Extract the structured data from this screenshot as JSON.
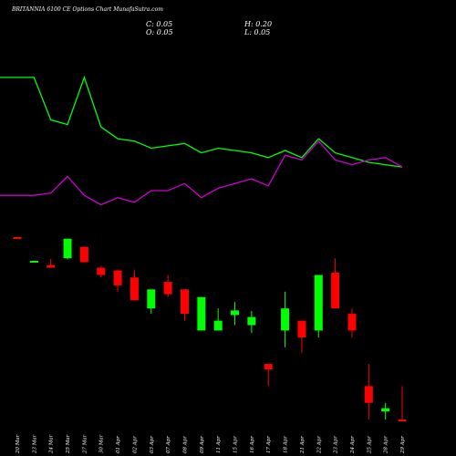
{
  "header": {
    "title": "BRITANNIA 6100  CE Options  Chart MunafaSutra.com",
    "close": "C: 0.05",
    "open": "O: 0.05",
    "high": "H: 0.20",
    "low": "L: 0.05"
  },
  "colors": {
    "background": "#000000",
    "line_green": "#00ff00",
    "line_magenta": "#cc00cc",
    "up": "#00ff00",
    "down": "#ff0000",
    "text": "#ffffff"
  },
  "chart_data": {
    "type": "candlestick",
    "categories": [
      "20 Mar",
      "23 Mar",
      "24 Mar",
      "25 Mar",
      "27 Mar",
      "30 Mar",
      "01 Apr",
      "02 Apr",
      "03 Apr",
      "07 Apr",
      "08 Apr",
      "09 Apr",
      "11 Apr",
      "15 Apr",
      "16 Apr",
      "17 Apr",
      "18 Apr",
      "21 Apr",
      "22 Apr",
      "23 Apr",
      "24 Apr",
      "25 Apr",
      "28 Apr",
      "29 Apr"
    ],
    "candles": [
      {
        "open": 96,
        "close": 91,
        "high": 96,
        "low": 91,
        "dir": "down"
      },
      {
        "open": 35,
        "close": 36,
        "high": 36,
        "low": 34,
        "dir": "up"
      },
      {
        "open": 30,
        "close": 27,
        "high": 39,
        "low": 27,
        "dir": "down"
      },
      {
        "open": 40,
        "close": 90,
        "high": 90,
        "low": 38,
        "dir": "up"
      },
      {
        "open": 64,
        "close": 34,
        "high": 64,
        "low": 34,
        "dir": "down"
      },
      {
        "open": 27,
        "close": 20,
        "high": 29,
        "low": 18,
        "dir": "down"
      },
      {
        "open": 24,
        "close": 13,
        "high": 25,
        "low": 10,
        "dir": "down"
      },
      {
        "open": 18,
        "close": 7,
        "high": 24,
        "low": 7,
        "dir": "down"
      },
      {
        "open": 5,
        "close": 11,
        "high": 11,
        "low": 4,
        "dir": "up"
      },
      {
        "open": 15,
        "close": 9,
        "high": 20,
        "low": 8,
        "dir": "down"
      },
      {
        "open": 11,
        "close": 4,
        "high": 11,
        "low": 3,
        "dir": "down"
      },
      {
        "open": 2,
        "close": 8,
        "high": 8,
        "low": 2,
        "dir": "up"
      },
      {
        "open": 2,
        "close": 3,
        "high": 5,
        "low": 2,
        "dir": "up"
      },
      {
        "open": 3.8,
        "close": 4.6,
        "high": 6.5,
        "low": 2.5,
        "dir": "up"
      },
      {
        "open": 2.5,
        "close": 3.5,
        "high": 4.5,
        "low": 1.8,
        "dir": "up"
      },
      {
        "open": 0.5,
        "close": 0.4,
        "high": 0.5,
        "low": 0.2,
        "dir": "down"
      },
      {
        "open": 2,
        "close": 5,
        "high": 10,
        "low": 1,
        "dir": "up"
      },
      {
        "open": 3,
        "close": 1.5,
        "high": 3,
        "low": 0.8,
        "dir": "down"
      },
      {
        "open": 2,
        "close": 20,
        "high": 20,
        "low": 1.5,
        "dir": "up"
      },
      {
        "open": 22,
        "close": 5,
        "high": 40,
        "low": 5,
        "dir": "down"
      },
      {
        "open": 4,
        "close": 2,
        "high": 5,
        "low": 1.5,
        "dir": "down"
      },
      {
        "open": 0.2,
        "close": 0.1,
        "high": 0.5,
        "low": 0.05,
        "dir": "down"
      },
      {
        "open": 0.07,
        "close": 0.08,
        "high": 0.1,
        "low": 0.05,
        "dir": "up"
      },
      {
        "open": 0.05,
        "close": 0.05,
        "high": 0.2,
        "low": 0.05,
        "dir": "down"
      }
    ],
    "series": [
      {
        "values": [
          100,
          100,
          82,
          80,
          100,
          79,
          74,
          73,
          70,
          71,
          72,
          68,
          70,
          69,
          68,
          66,
          69,
          66,
          74,
          68,
          66,
          64,
          63,
          62
        ]
      },
      {
        "values": [
          50,
          50,
          51,
          58,
          50,
          46,
          49,
          47,
          52,
          52,
          55,
          49,
          53,
          55,
          57,
          54,
          67,
          65,
          73,
          65,
          63,
          65,
          66,
          62
        ]
      }
    ],
    "lines_ylim": [
      40,
      105
    ],
    "grid": false,
    "legend": "none"
  }
}
